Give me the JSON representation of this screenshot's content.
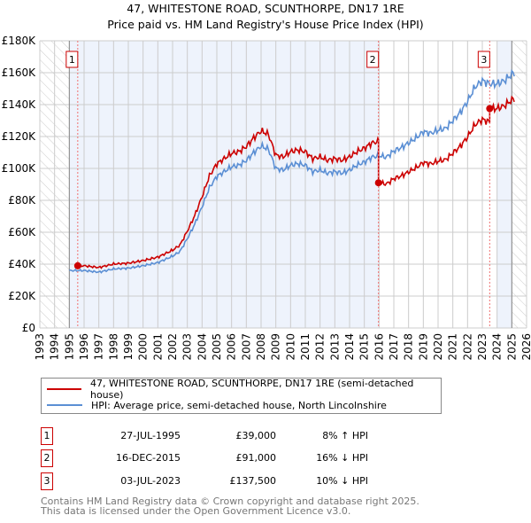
{
  "title": "47, WHITESTONE ROAD, SCUNTHORPE, DN17 1RE",
  "subtitle": "Price paid vs. HM Land Registry's House Price Index (HPI)",
  "colors": {
    "property": "#cc0000",
    "hpi": "#5b8fd4",
    "shade": "#eef3fc"
  },
  "chart_data": {
    "type": "line",
    "title": "47, WHITESTONE ROAD, SCUNTHORPE, DN17 1RE",
    "xlim": [
      1993,
      2026
    ],
    "ylim": [
      0,
      180000
    ],
    "x_ticks": [
      "1993",
      "1994",
      "1995",
      "1996",
      "1997",
      "1998",
      "1999",
      "2000",
      "2001",
      "2002",
      "2003",
      "2004",
      "2005",
      "2006",
      "2007",
      "2008",
      "2009",
      "2010",
      "2011",
      "2012",
      "2013",
      "2014",
      "2015",
      "2016",
      "2017",
      "2018",
      "2019",
      "2020",
      "2021",
      "2022",
      "2023",
      "2024",
      "2025",
      "2026"
    ],
    "y_ticks": [
      {
        "v": 0,
        "label": "£0"
      },
      {
        "v": 20000,
        "label": "£20K"
      },
      {
        "v": 40000,
        "label": "£40K"
      },
      {
        "v": 60000,
        "label": "£60K"
      },
      {
        "v": 80000,
        "label": "£80K"
      },
      {
        "v": 100000,
        "label": "£100K"
      },
      {
        "v": 120000,
        "label": "£120K"
      },
      {
        "v": 140000,
        "label": "£140K"
      },
      {
        "v": 160000,
        "label": "£160K"
      },
      {
        "v": 180000,
        "label": "£180K"
      }
    ],
    "grid": true,
    "hpi_series": {
      "name": "HPI: Average price, semi-detached house, North Lincolnshire",
      "x": [
        1995,
        1996,
        1997,
        1998,
        1999,
        2000,
        2001,
        2002,
        2002.5,
        2003,
        2003.5,
        2004,
        2004.5,
        2005,
        2005.5,
        2006,
        2006.5,
        2007,
        2007.5,
        2008,
        2008.5,
        2009,
        2009.5,
        2010,
        2010.5,
        2011,
        2011.5,
        2012,
        2012.5,
        2013,
        2013.5,
        2014,
        2014.5,
        2015,
        2015.5,
        2016,
        2016.5,
        2017,
        2017.5,
        2018,
        2018.5,
        2019,
        2019.5,
        2020,
        2020.5,
        2021,
        2021.5,
        2022,
        2022.5,
        2023,
        2023.5,
        2024,
        2024.5,
        2025,
        2025.2
      ],
      "y": [
        36000,
        36000,
        35000,
        37000,
        37500,
        39000,
        41000,
        45000,
        48000,
        56000,
        65000,
        76000,
        88000,
        95000,
        98000,
        101000,
        102000,
        105000,
        110000,
        114000,
        112000,
        100000,
        99000,
        102000,
        103000,
        102000,
        98000,
        99000,
        97000,
        98000,
        97000,
        99000,
        102000,
        104000,
        107000,
        108000,
        107000,
        111000,
        113000,
        116000,
        119000,
        123000,
        122000,
        124000,
        125000,
        130000,
        135000,
        142000,
        151000,
        155000,
        153000,
        153000,
        155000,
        159000,
        160000
      ]
    },
    "property_series": {
      "name": "47, WHITESTONE ROAD, SCUNTHORPE, DN17 1RE (semi-detached house)"
    },
    "sales": [
      {
        "n": "1",
        "x": 1995.57,
        "price": 39000,
        "date": "27-JUL-1995",
        "price_label": "£39,000",
        "hpi_label": "8% ↑ HPI"
      },
      {
        "n": "2",
        "x": 2015.96,
        "price": 91000,
        "date": "16-DEC-2015",
        "price_label": "£91,000",
        "hpi_label": "16% ↓ HPI"
      },
      {
        "n": "3",
        "x": 2023.5,
        "price": 137500,
        "date": "03-JUL-2023",
        "price_label": "£137,500",
        "hpi_label": "10% ↓ HPI"
      }
    ],
    "shaded_periods": [
      [
        1995,
        2016
      ],
      [
        2024,
        2025
      ]
    ],
    "hatched_periods": [
      [
        1993,
        1995
      ],
      [
        2025,
        2026
      ]
    ],
    "legend_placement": "below"
  },
  "legend": {
    "property": "47, WHITESTONE ROAD, SCUNTHORPE, DN17 1RE (semi-detached house)",
    "hpi": "HPI: Average price, semi-detached house, North Lincolnshire"
  },
  "footer": {
    "line1": "Contains HM Land Registry data © Crown copyright and database right 2025.",
    "line2": "This data is licensed under the Open Government Licence v3.0."
  }
}
